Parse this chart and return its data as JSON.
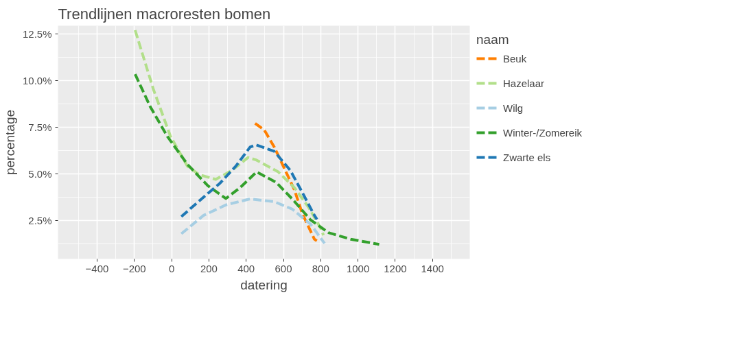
{
  "chart_data": {
    "type": "line",
    "title": "Trendlijnen macroresten bomen",
    "xlabel": "datering",
    "ylabel": "percentage",
    "legend_title": "naam",
    "legend": "right",
    "grid": true,
    "line_style": "dashed",
    "marker": "none",
    "xlim": [
      -610,
      1600
    ],
    "ylim": [
      0.43,
      12.94
    ],
    "xticks": [
      -400,
      -200,
      0,
      200,
      400,
      600,
      800,
      1000,
      1200,
      1400
    ],
    "yticks": [
      {
        "value": 2.5,
        "label": "2.5%"
      },
      {
        "value": 5.0,
        "label": "5.0%"
      },
      {
        "value": 7.5,
        "label": "7.5%"
      },
      {
        "value": 10.0,
        "label": "10.0%"
      },
      {
        "value": 12.5,
        "label": "12.5%"
      }
    ],
    "series": [
      {
        "name": "Beuk",
        "color": "#ff7f00",
        "x": [
          448,
          497,
          551,
          605,
          659,
          701,
          766,
          779
        ],
        "values": [
          7.7,
          7.35,
          6.43,
          5.28,
          4.14,
          2.87,
          1.49,
          1.4
        ]
      },
      {
        "name": "Hazelaar",
        "color": "#b2df8a",
        "x": [
          -196,
          -98,
          -6,
          85,
          150,
          237,
          324,
          410,
          454,
          572,
          659,
          735,
          800,
          815
        ],
        "values": [
          12.7,
          9.53,
          7.0,
          5.4,
          4.94,
          4.7,
          5.18,
          5.87,
          5.74,
          5.1,
          4.25,
          3.2,
          2.08,
          1.7
        ]
      },
      {
        "name": "Wilg",
        "color": "#a6cee3",
        "x": [
          52,
          172,
          292,
          421,
          551,
          648,
          746,
          821
        ],
        "values": [
          1.78,
          2.77,
          3.33,
          3.65,
          3.5,
          3.1,
          2.29,
          1.26
        ]
      },
      {
        "name": "Winter-/Zomereik",
        "color": "#33a02c",
        "x": [
          -196,
          -115,
          -23,
          85,
          194,
          291,
          367,
          456,
          562,
          649,
          746,
          844,
          961,
          1114
        ],
        "values": [
          10.34,
          8.6,
          7.0,
          5.5,
          4.36,
          3.67,
          4.25,
          5.1,
          4.53,
          3.63,
          2.52,
          1.83,
          1.49,
          1.21
        ]
      },
      {
        "name": "Zwarte els",
        "color": "#1f78b4",
        "x": [
          52,
          150,
          259,
          344,
          421,
          454,
          551,
          637,
          701,
          766,
          780
        ],
        "values": [
          2.7,
          3.56,
          4.49,
          5.4,
          6.43,
          6.55,
          6.2,
          5.18,
          4.0,
          2.77,
          2.55
        ]
      }
    ]
  }
}
